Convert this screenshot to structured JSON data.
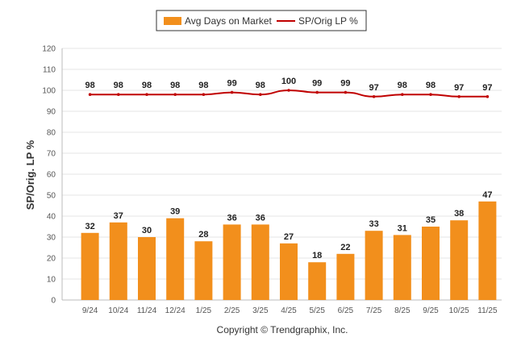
{
  "chart_data": {
    "type": "bar",
    "categories": [
      "9/24",
      "10/24",
      "11/24",
      "12/24",
      "1/25",
      "2/25",
      "3/25",
      "4/25",
      "5/25",
      "6/25",
      "7/25",
      "8/25",
      "9/25",
      "10/25",
      "11/25"
    ],
    "series": [
      {
        "name": "Avg Days on Market",
        "type": "bar",
        "color": "#f28f1c",
        "values": [
          32,
          37,
          30,
          39,
          28,
          36,
          36,
          27,
          18,
          22,
          33,
          31,
          35,
          38,
          47
        ]
      },
      {
        "name": "SP/Orig LP %",
        "type": "line",
        "color": "#c00000",
        "values": [
          98,
          98,
          98,
          98,
          98,
          99,
          98,
          100,
          99,
          99,
          97,
          98,
          98,
          97,
          97
        ]
      }
    ],
    "ylabel": "SP/Orig. LP %",
    "ylim": [
      0,
      120
    ],
    "yticks": [
      0,
      10,
      20,
      30,
      40,
      50,
      60,
      70,
      80,
      90,
      100,
      110,
      120
    ],
    "grid": true,
    "legend_placement": "top-center"
  },
  "footer": "Copyright © Trendgraphix, Inc."
}
